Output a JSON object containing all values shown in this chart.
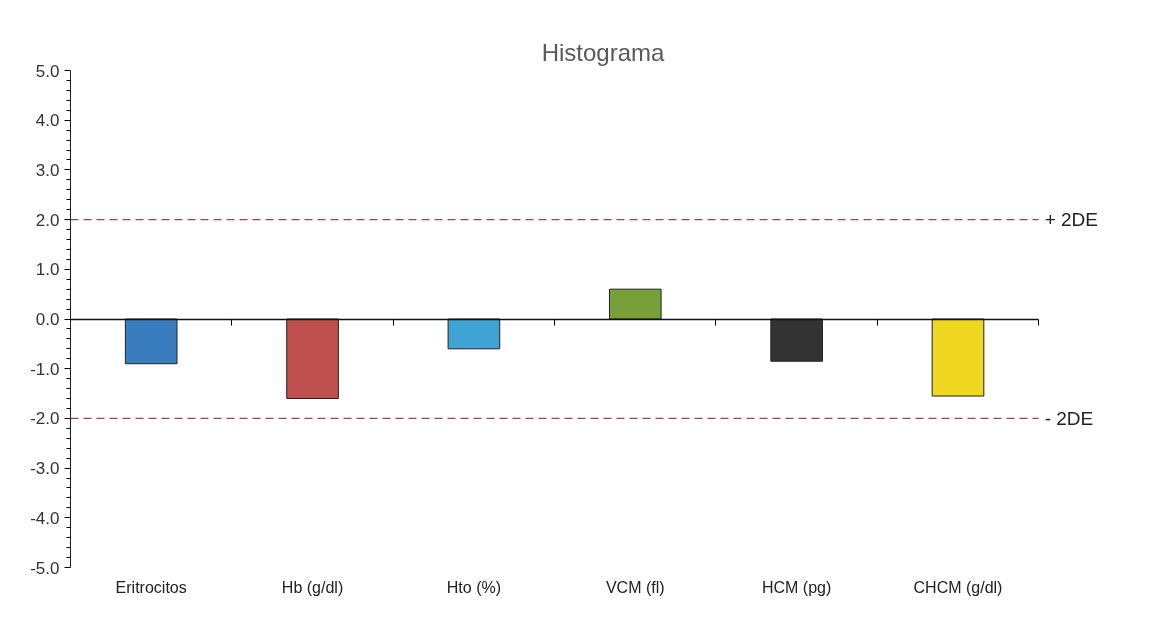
{
  "chart_data": {
    "type": "bar",
    "title": "Histograma",
    "categories": [
      "Eritrocitos",
      "Hb (g/dl)",
      "Hto (%)",
      "VCM (fl)",
      "HCM (pg)",
      "CHCM (g/dl)"
    ],
    "values": [
      -0.9,
      -1.6,
      -0.6,
      0.6,
      -0.85,
      -1.55
    ],
    "colors": [
      "#3a7dbf",
      "#c0504d",
      "#3fa4d4",
      "#77a03a",
      "#333333",
      "#f0d820"
    ],
    "ylim": [
      -5,
      5
    ],
    "yticks": [
      {
        "value": -5,
        "label": "-5.0"
      },
      {
        "value": -4,
        "label": "-4.0"
      },
      {
        "value": -3,
        "label": "-3.0"
      },
      {
        "value": -2,
        "label": "-2.0"
      },
      {
        "value": -1,
        "label": "-1.0"
      },
      {
        "value": 0,
        "label": "0.0"
      },
      {
        "value": 1,
        "label": "1.0"
      },
      {
        "value": 2,
        "label": "2.0"
      },
      {
        "value": 3,
        "label": "3.0"
      },
      {
        "value": 4,
        "label": "4.0"
      },
      {
        "value": 5,
        "label": "5.0"
      }
    ],
    "ref_lines": [
      {
        "axis": "y",
        "value": 2,
        "label": "+ 2DE",
        "color": "#a0405a",
        "line_style": "dashed"
      },
      {
        "axis": "y",
        "value": -2,
        "label": "- 2DE",
        "color": "#a0405a",
        "line_style": "dashed"
      }
    ],
    "grid": false
  }
}
